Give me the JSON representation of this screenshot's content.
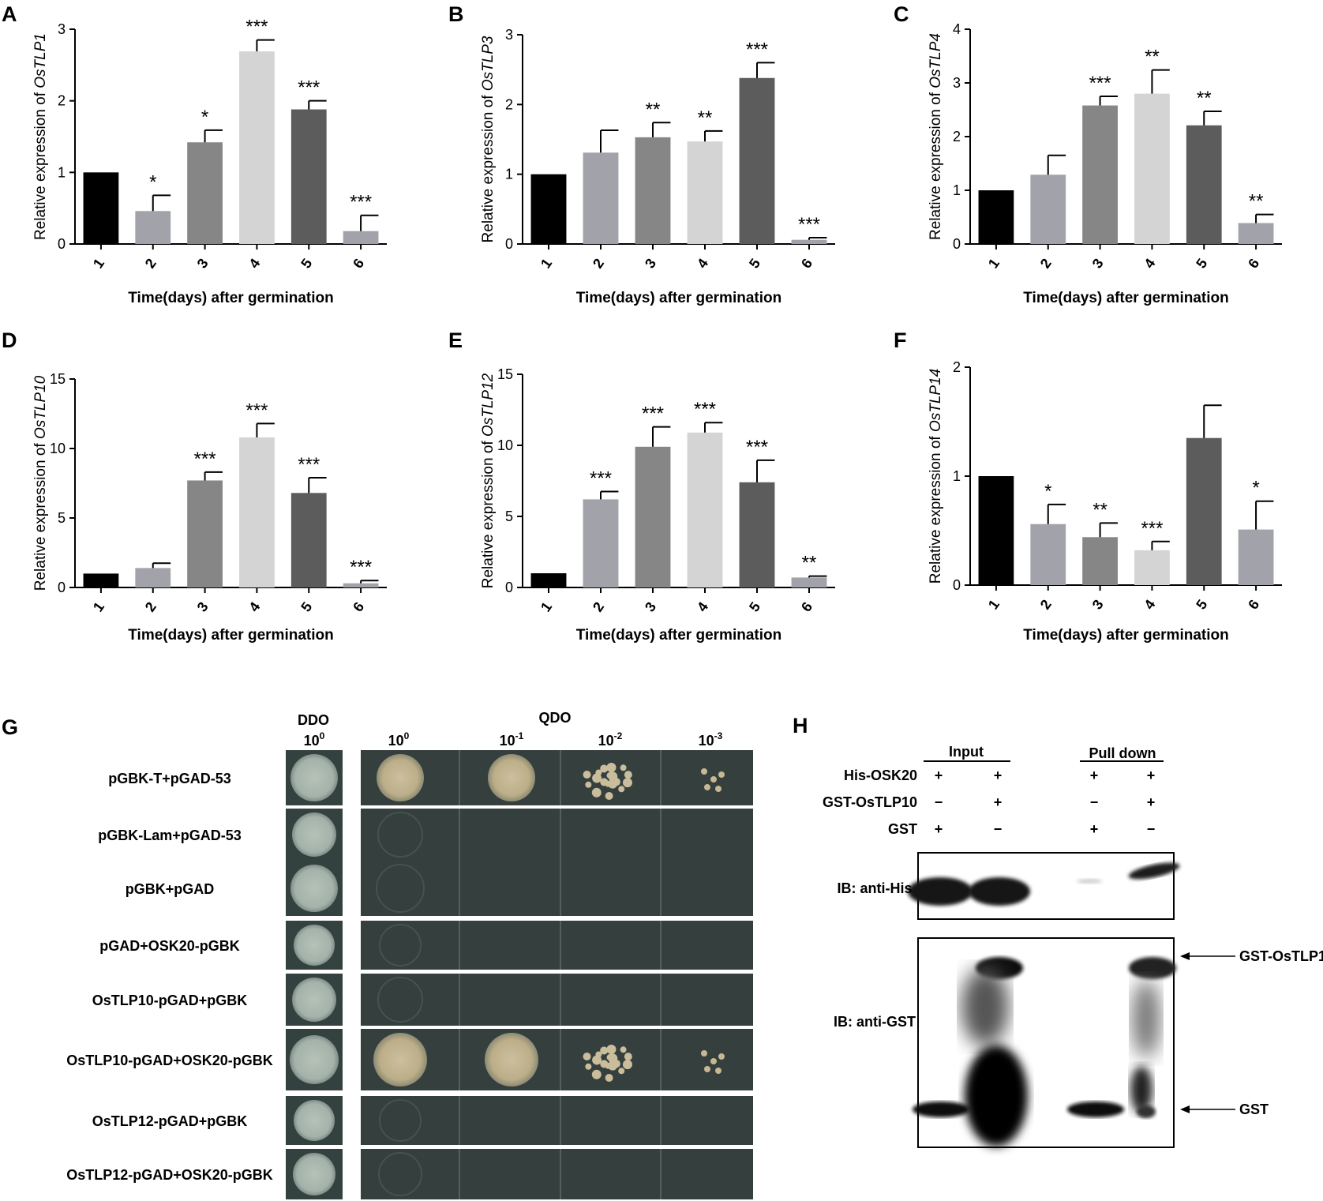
{
  "chart_data": [
    {
      "type": "bar",
      "panel": "A",
      "gene": "OsTLP1",
      "ylabel_prefix": "Relative expression of ",
      "xlabel": "Time(days) after germination",
      "categories": [
        "1",
        "2",
        "3",
        "4",
        "5",
        "6"
      ],
      "values": [
        1.0,
        0.46,
        1.42,
        2.69,
        1.88,
        0.18
      ],
      "errors": [
        0,
        0.22,
        0.17,
        0.16,
        0.12,
        0.22
      ],
      "significance": [
        "",
        "*",
        "*",
        "***",
        "***",
        "***"
      ],
      "ylim": [
        0,
        3
      ],
      "yticks": [
        "0",
        "1",
        "2",
        "3"
      ],
      "colors": [
        "#000000",
        "#a2a2aa",
        "#868686",
        "#d4d4d4",
        "#5c5c5c",
        "#a2a2aa"
      ]
    },
    {
      "type": "bar",
      "panel": "B",
      "gene": "OsTLP3",
      "ylabel_prefix": "Relative expression of ",
      "xlabel": "Time(days) after germination",
      "categories": [
        "1",
        "2",
        "3",
        "4",
        "5",
        "6"
      ],
      "values": [
        1.0,
        1.31,
        1.53,
        1.47,
        2.38,
        0.06
      ],
      "errors": [
        0,
        0.32,
        0.21,
        0.15,
        0.22,
        0.03
      ],
      "significance": [
        "",
        "",
        "**",
        "**",
        "***",
        "***"
      ],
      "ylim": [
        0,
        3
      ],
      "yticks": [
        "0",
        "1",
        "2",
        "3"
      ],
      "colors": [
        "#000000",
        "#a2a2aa",
        "#868686",
        "#d4d4d4",
        "#5c5c5c",
        "#a2a2aa"
      ]
    },
    {
      "type": "bar",
      "panel": "C",
      "gene": "OsTLP4",
      "ylabel_prefix": "Relative expression of ",
      "xlabel": "Time(days) after germination",
      "categories": [
        "1",
        "2",
        "3",
        "4",
        "5",
        "6"
      ],
      "values": [
        1.0,
        1.29,
        2.58,
        2.8,
        2.21,
        0.39
      ],
      "errors": [
        0,
        0.36,
        0.17,
        0.44,
        0.26,
        0.16
      ],
      "significance": [
        "",
        "",
        "***",
        "**",
        "**",
        "**"
      ],
      "ylim": [
        0,
        4
      ],
      "yticks": [
        "0",
        "1",
        "2",
        "3",
        "4"
      ],
      "colors": [
        "#000000",
        "#a2a2aa",
        "#868686",
        "#d4d4d4",
        "#5c5c5c",
        "#a2a2aa"
      ]
    },
    {
      "type": "bar",
      "panel": "D",
      "gene": "OsTLP10",
      "ylabel_prefix": "Relative expression of ",
      "xlabel": "Time(days) after germination",
      "categories": [
        "1",
        "2",
        "3",
        "4",
        "5",
        "6"
      ],
      "values": [
        1.0,
        1.4,
        7.7,
        10.8,
        6.8,
        0.3
      ],
      "errors": [
        0,
        0.35,
        0.6,
        1.0,
        1.1,
        0.2
      ],
      "significance": [
        "",
        "",
        "***",
        "***",
        "***",
        "***"
      ],
      "ylim": [
        0,
        15
      ],
      "yticks": [
        "0",
        "5",
        "10",
        "15"
      ],
      "colors": [
        "#000000",
        "#a2a2aa",
        "#868686",
        "#d4d4d4",
        "#5c5c5c",
        "#a2a2aa"
      ]
    },
    {
      "type": "bar",
      "panel": "E",
      "gene": "OsTLP12",
      "ylabel_prefix": "Relative expression of ",
      "xlabel": "Time(days) after germination",
      "categories": [
        "1",
        "2",
        "3",
        "4",
        "5",
        "6"
      ],
      "values": [
        1.0,
        6.2,
        9.9,
        10.9,
        7.4,
        0.7
      ],
      "errors": [
        0,
        0.55,
        1.4,
        0.7,
        1.55,
        0.1
      ],
      "significance": [
        "",
        "***",
        "***",
        "***",
        "***",
        "**"
      ],
      "ylim": [
        0,
        15
      ],
      "yticks": [
        "0",
        "5",
        "10",
        "15"
      ],
      "colors": [
        "#000000",
        "#a2a2aa",
        "#868686",
        "#d4d4d4",
        "#5c5c5c",
        "#a2a2aa"
      ]
    },
    {
      "type": "bar",
      "panel": "F",
      "gene": "OsTLP14",
      "ylabel_prefix": "Relative expression of ",
      "xlabel": "Time(days) after germination",
      "categories": [
        "1",
        "2",
        "3",
        "4",
        "5",
        "6"
      ],
      "values": [
        1.0,
        0.56,
        0.44,
        0.32,
        1.35,
        0.51
      ],
      "errors": [
        0,
        0.18,
        0.13,
        0.08,
        0.3,
        0.26
      ],
      "significance": [
        "",
        "*",
        "**",
        "***",
        "",
        "*"
      ],
      "ylim": [
        0,
        2
      ],
      "yticks": [
        "0",
        "1",
        "2"
      ],
      "colors": [
        "#000000",
        "#a2a2aa",
        "#868686",
        "#d4d4d4",
        "#5c5c5c",
        "#a2a2aa"
      ]
    }
  ],
  "panel_g": {
    "letter": "G",
    "ddo_header": "DDO",
    "qdo_header": "QDO",
    "dilutions": [
      {
        "base": "10",
        "exp": "0"
      },
      {
        "base": "10",
        "exp": "0"
      },
      {
        "base": "10",
        "exp": "-1"
      },
      {
        "base": "10",
        "exp": "-2"
      },
      {
        "base": "10",
        "exp": "-3"
      }
    ],
    "rows": [
      {
        "label": "pGBK-T+pGAD-53",
        "growth": [
          1,
          1,
          1,
          0.7,
          0.25
        ]
      },
      {
        "label": "pGBK-Lam+pGAD-53",
        "growth": [
          1,
          0,
          0,
          0,
          0
        ]
      },
      {
        "label": "pGBK+pGAD",
        "growth": [
          1,
          0,
          0,
          0,
          0
        ]
      },
      {
        "label": "pGAD+OSK20-pGBK",
        "growth": [
          1,
          0,
          0,
          0,
          0
        ]
      },
      {
        "label": "OsTLP10-pGAD+pGBK",
        "growth": [
          1,
          0,
          0,
          0,
          0
        ]
      },
      {
        "label": "OsTLP10-pGAD+OSK20-pGBK",
        "growth": [
          1,
          1,
          1,
          0.7,
          0.3
        ]
      },
      {
        "label": "OsTLP12-pGAD+pGBK",
        "growth": [
          1,
          0,
          0,
          0,
          0
        ]
      },
      {
        "label": "OsTLP12-pGAD+OSK20-pGBK",
        "growth": [
          1,
          0,
          0,
          0,
          0
        ]
      }
    ]
  },
  "panel_h": {
    "letter": "H",
    "input_header": "Input",
    "pulldown_header": "Pull down",
    "rows": [
      {
        "label": "His-OSK20",
        "marks": [
          "+",
          "+",
          "+",
          "+"
        ]
      },
      {
        "label": "GST-OsTLP10",
        "marks": [
          "−",
          "+",
          "−",
          "+"
        ]
      },
      {
        "label": "GST",
        "marks": [
          "+",
          "−",
          "+",
          "−"
        ]
      }
    ],
    "blot_his_label": "IB: anti-His",
    "blot_gst_label": "IB: anti-GST",
    "arrow_top_label": "GST-OsTLP10",
    "arrow_bottom_label": "GST"
  }
}
